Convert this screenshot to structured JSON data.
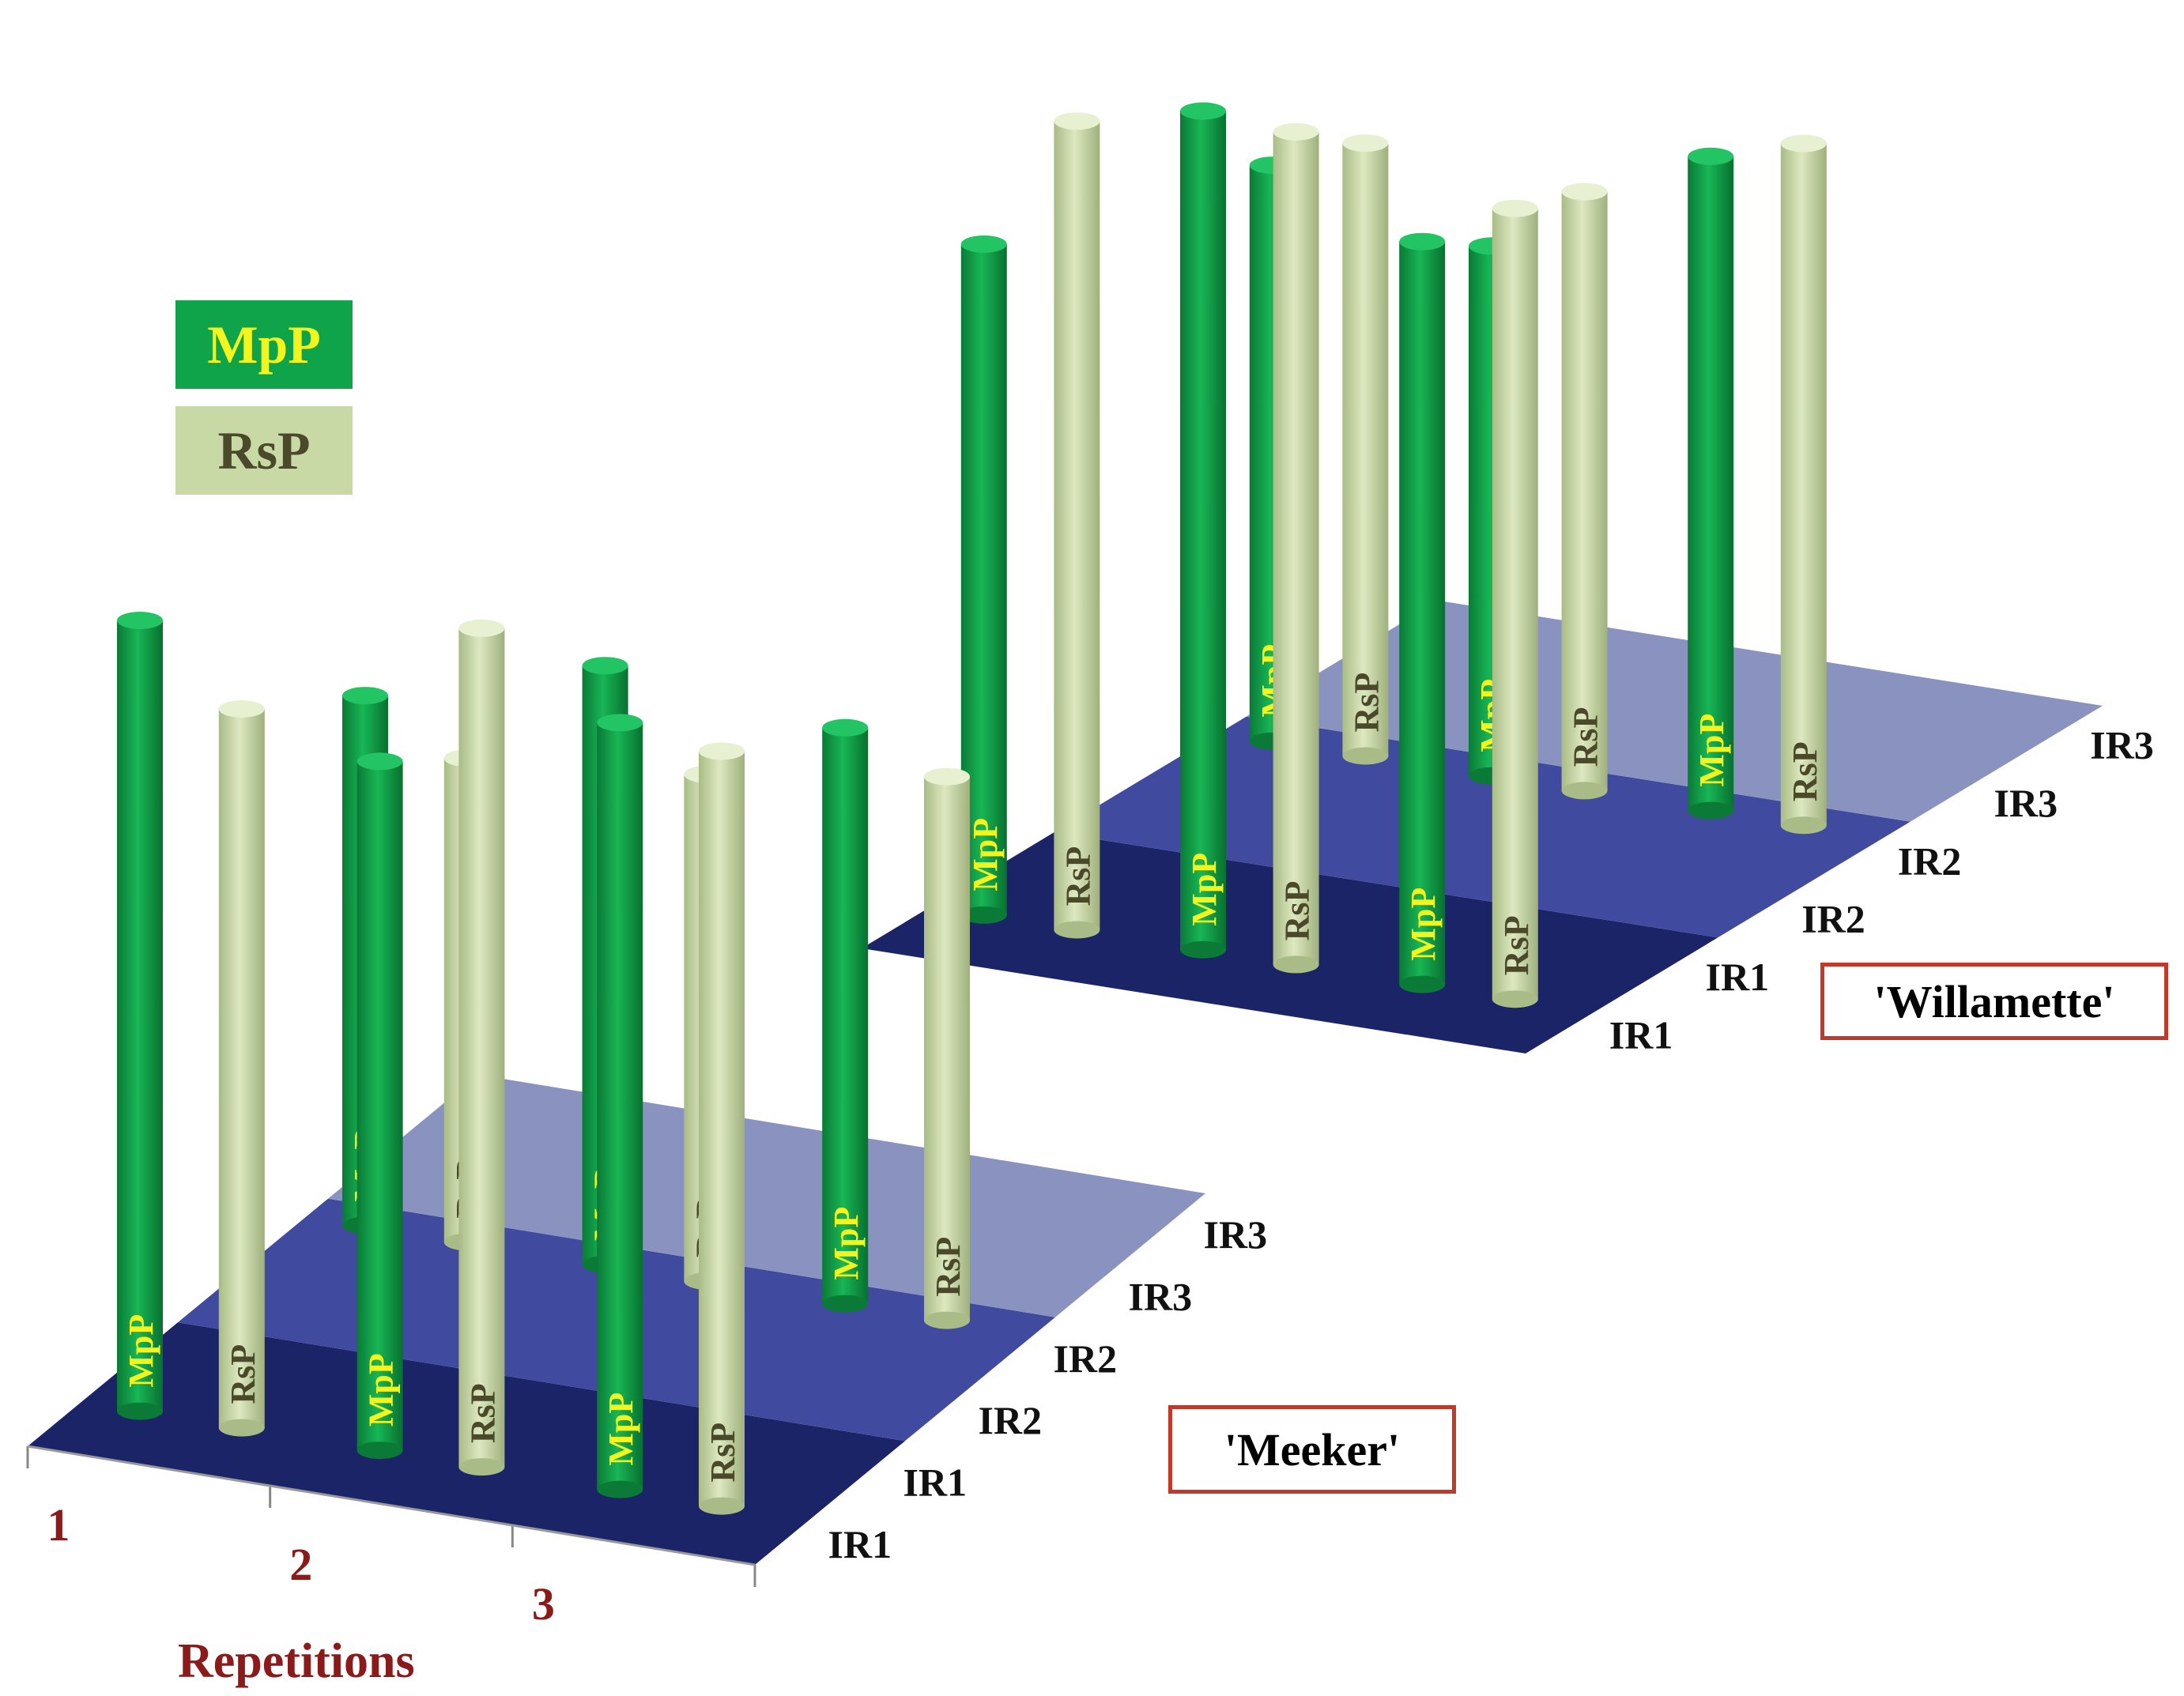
{
  "legend": {
    "items": [
      {
        "label": "MpP",
        "bg": "#0fa34a",
        "fg": "#f5f51e"
      },
      {
        "label": "RsP",
        "bg": "#c9d9a5",
        "fg": "#4a4a2a"
      }
    ]
  },
  "axis": {
    "title": "Repetitions",
    "labels": [
      "1",
      "2",
      "3"
    ],
    "color": "#8b1a1a"
  },
  "colors": {
    "mpp": "#0fa34a",
    "rsp": "#c9d9a5",
    "mpp_text": "#f5f51e",
    "rsp_text": "#4a4a2a",
    "ir1_dark": "#1b2466",
    "ir2_mid": "#404a9e",
    "ir3_light": "#8a93bf",
    "box_border": "#c0392b"
  },
  "plots": [
    {
      "cultivar": "'Meeker'",
      "row_labels": [
        "IR1",
        "IR1",
        "IR2",
        "IR2",
        "IR3",
        "IR3"
      ],
      "cylinders": [
        {
          "type": "MpP"
        },
        {
          "type": "RsP"
        },
        {
          "type": "MpP"
        },
        {
          "type": "RsP"
        },
        {
          "type": "MpP"
        },
        {
          "type": "RsP"
        },
        {
          "type": "MpP"
        },
        {
          "type": "RsP"
        },
        {
          "type": "MpP"
        },
        {
          "type": "RsP"
        },
        {
          "type": "MpP"
        },
        {
          "type": "RsP"
        }
      ]
    },
    {
      "cultivar": "'Willamette'",
      "row_labels": [
        "IR1",
        "IR1",
        "IR2",
        "IR2",
        "IR3",
        "IR3"
      ],
      "cylinders": [
        {
          "type": "MpP"
        },
        {
          "type": "RsP"
        },
        {
          "type": "MpP"
        },
        {
          "type": "RsP"
        },
        {
          "type": "MpP"
        },
        {
          "type": "RsP"
        },
        {
          "type": "MpP"
        },
        {
          "type": "RsP"
        },
        {
          "type": "MpP"
        },
        {
          "type": "RsP"
        },
        {
          "type": "MpP"
        },
        {
          "type": "RsP"
        }
      ]
    }
  ]
}
